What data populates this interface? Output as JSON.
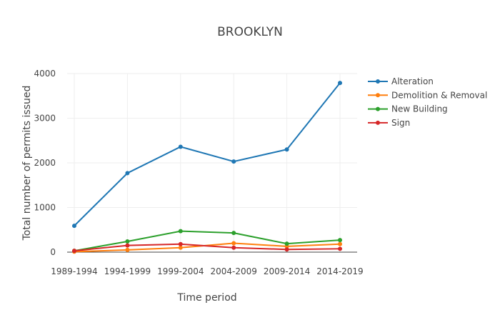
{
  "chart_data": {
    "type": "line",
    "title": "BROOKLYN",
    "xlabel": "Time period",
    "ylabel": "Total number of permits issued",
    "categories": [
      "1989-1994",
      "1994-1999",
      "1999-2004",
      "2004-2009",
      "2009-2014",
      "2014-2019"
    ],
    "ylim": [
      0,
      4000
    ],
    "yticks": [
      0,
      1000,
      2000,
      3000,
      4000
    ],
    "ytick_labels": [
      "0",
      "1000",
      "2000",
      "3000",
      "4000"
    ],
    "grid": true,
    "legend_position": "right",
    "series": [
      {
        "name": "Alteration",
        "color": "#1f77b4",
        "values": [
          590,
          1770,
          2360,
          2030,
          2300,
          3790
        ]
      },
      {
        "name": "Demolition & Removal",
        "color": "#ff7f0e",
        "values": [
          10,
          50,
          100,
          200,
          130,
          180
        ]
      },
      {
        "name": "New Building",
        "color": "#2ca02c",
        "values": [
          30,
          240,
          470,
          430,
          190,
          270
        ]
      },
      {
        "name": "Sign",
        "color": "#d62728",
        "values": [
          30,
          150,
          180,
          100,
          60,
          75
        ]
      }
    ]
  }
}
